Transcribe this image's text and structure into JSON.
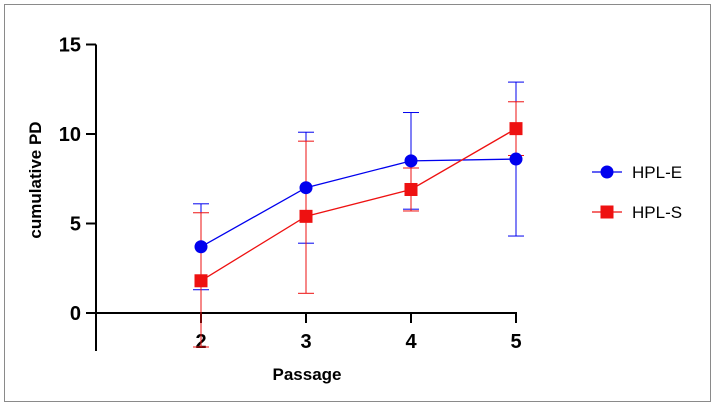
{
  "chart_data": {
    "type": "line",
    "xlabel": "Passage",
    "ylabel": "cumulative PD",
    "x": [
      2,
      3,
      4,
      5
    ],
    "xlim": [
      1,
      5
    ],
    "ylim": [
      0,
      15
    ],
    "yticks": [
      0,
      5,
      10,
      15
    ],
    "xticks": [
      2,
      3,
      4,
      5
    ],
    "grid": false,
    "legend_position": "right",
    "series": [
      {
        "name": "HPL-E",
        "color": "#0000ee",
        "marker": "circle",
        "values": [
          3.7,
          7.0,
          8.5,
          8.6
        ],
        "error_low": [
          1.3,
          3.9,
          5.8,
          4.3
        ],
        "error_high": [
          6.1,
          10.1,
          11.2,
          12.9
        ]
      },
      {
        "name": "HPL-S",
        "color": "#ee1111",
        "marker": "square",
        "values": [
          1.8,
          5.4,
          6.9,
          10.3
        ],
        "error_low": [
          -1.9,
          1.1,
          5.7,
          8.8
        ],
        "error_high": [
          5.6,
          9.6,
          8.1,
          11.8
        ]
      }
    ]
  }
}
